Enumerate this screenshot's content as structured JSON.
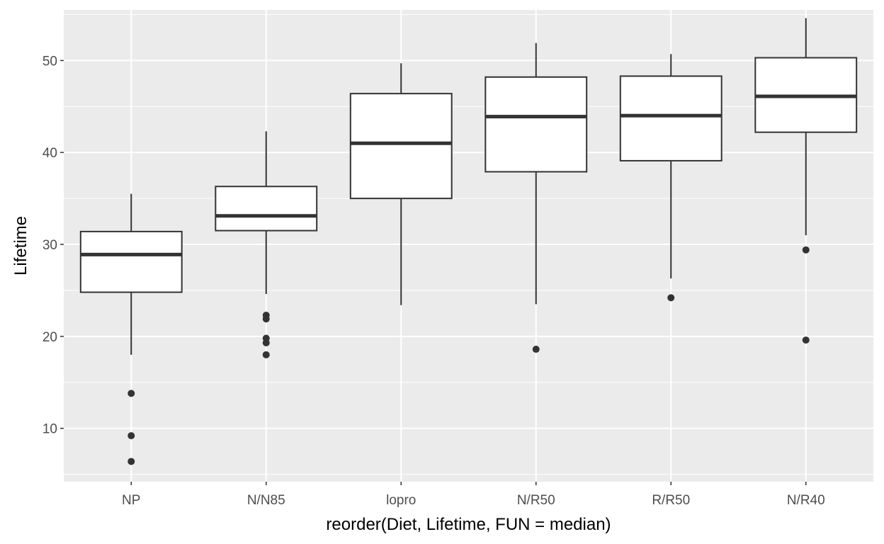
{
  "chart_data": {
    "type": "boxplot",
    "xlabel": "reorder(Diet, Lifetime, FUN = median)",
    "ylabel": "Lifetime",
    "ylim": [
      4.2,
      55.5
    ],
    "y_ticks": [
      10,
      20,
      30,
      40,
      50
    ],
    "grid": true,
    "colors": {
      "panel": "#ebebeb",
      "grid_major": "#ffffff",
      "box_fill": "#ffffff",
      "line": "#333333",
      "tick_text": "#4d4d4d"
    },
    "categories": [
      "NP",
      "N/N85",
      "lopro",
      "N/R50",
      "R/R50",
      "N/R40"
    ],
    "boxes": [
      {
        "category": "NP",
        "whisker_low": 18.0,
        "q1": 24.8,
        "median": 28.9,
        "q3": 31.4,
        "whisker_high": 35.5,
        "outliers": [
          13.8,
          9.2,
          6.4
        ]
      },
      {
        "category": "N/N85",
        "whisker_low": 24.6,
        "q1": 31.5,
        "median": 33.1,
        "q3": 36.3,
        "whisker_high": 42.3,
        "outliers": [
          22.3,
          21.9,
          19.8,
          19.3,
          18.0
        ]
      },
      {
        "category": "lopro",
        "whisker_low": 23.4,
        "q1": 35.0,
        "median": 41.0,
        "q3": 46.4,
        "whisker_high": 49.7,
        "outliers": []
      },
      {
        "category": "N/R50",
        "whisker_low": 23.5,
        "q1": 37.9,
        "median": 43.9,
        "q3": 48.2,
        "whisker_high": 51.9,
        "outliers": [
          18.6
        ]
      },
      {
        "category": "R/R50",
        "whisker_low": 26.3,
        "q1": 39.1,
        "median": 44.0,
        "q3": 48.3,
        "whisker_high": 50.7,
        "outliers": [
          24.2
        ]
      },
      {
        "category": "N/R40",
        "whisker_low": 31.0,
        "q1": 42.2,
        "median": 46.1,
        "q3": 50.3,
        "whisker_high": 54.6,
        "outliers": [
          29.4,
          19.6
        ]
      }
    ]
  }
}
